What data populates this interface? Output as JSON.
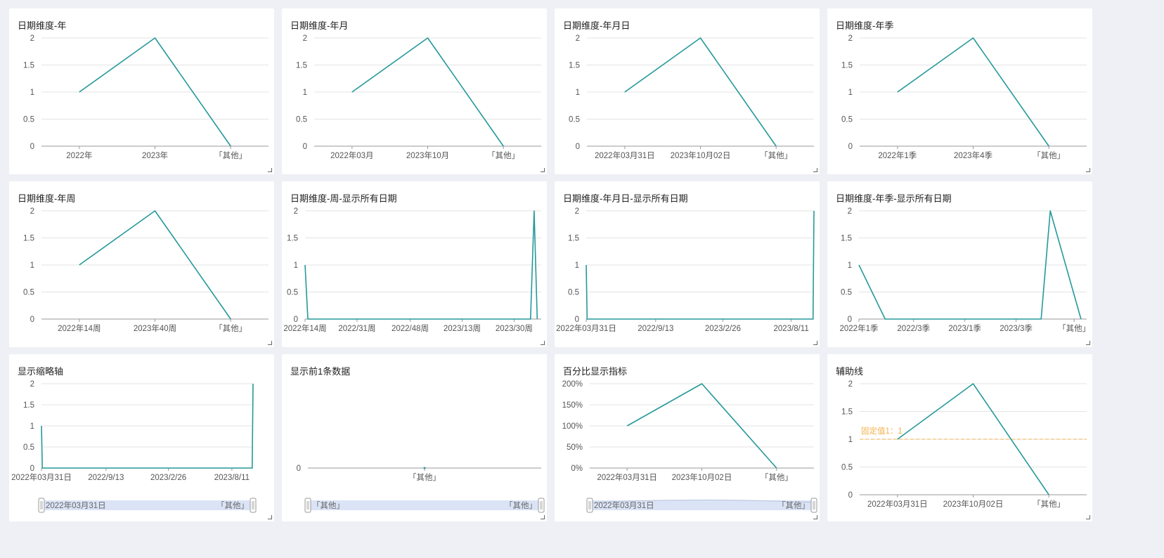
{
  "colors": {
    "line": "#27999a",
    "grid": "#e3e3e3",
    "axis": "#999999",
    "markLine": "#f2b14b",
    "sliderFill": "#dbe4f6"
  },
  "chart_data": [
    {
      "type": "line",
      "title": "日期维度-年",
      "x_ticks": [
        "2022年",
        "2023年",
        "「其他」"
      ],
      "y_ticks": [
        "0",
        "0.5",
        "1",
        "1.5",
        "2"
      ],
      "ylim": [
        0,
        2
      ],
      "series": [
        {
          "values": [
            1,
            2,
            0
          ]
        }
      ]
    },
    {
      "type": "line",
      "title": "日期维度-年月",
      "x_ticks": [
        "2022年03月",
        "2023年10月",
        "「其他」"
      ],
      "y_ticks": [
        "0",
        "0.5",
        "1",
        "1.5",
        "2"
      ],
      "ylim": [
        0,
        2
      ],
      "series": [
        {
          "values": [
            1,
            2,
            0
          ]
        }
      ]
    },
    {
      "type": "line",
      "title": "日期维度-年月日",
      "x_ticks": [
        "2022年03月31日",
        "2023年10月02日",
        "「其他」"
      ],
      "y_ticks": [
        "0",
        "0.5",
        "1",
        "1.5",
        "2"
      ],
      "ylim": [
        0,
        2
      ],
      "series": [
        {
          "values": [
            1,
            2,
            0
          ]
        }
      ]
    },
    {
      "type": "line",
      "title": "日期维度-年季",
      "x_ticks": [
        "2022年1季",
        "2023年4季",
        "「其他」"
      ],
      "y_ticks": [
        "0",
        "0.5",
        "1",
        "1.5",
        "2"
      ],
      "ylim": [
        0,
        2
      ],
      "series": [
        {
          "values": [
            1,
            2,
            0
          ]
        }
      ]
    },
    {
      "type": "line",
      "title": "日期维度-年周",
      "x_ticks": [
        "2022年14周",
        "2023年40周",
        "「其他」"
      ],
      "y_ticks": [
        "0",
        "0.5",
        "1",
        "1.5",
        "2"
      ],
      "ylim": [
        0,
        2
      ],
      "series": [
        {
          "values": [
            1,
            2,
            0
          ]
        }
      ]
    },
    {
      "type": "line",
      "title": "日期维度-周-显示所有日期",
      "x_ticks": [
        "2022年14周",
        "2022/31周",
        "2022/48周",
        "2023/13周",
        "2023/30周"
      ],
      "y_ticks": [
        "0",
        "0.5",
        "1",
        "1.5",
        "2"
      ],
      "ylim": [
        0,
        2
      ],
      "series": [
        {
          "values": [
            1,
            0,
            0,
            0,
            0,
            0,
            0,
            0,
            0,
            0,
            0,
            0,
            0,
            0,
            0,
            0,
            0,
            0,
            0,
            0,
            0,
            0,
            0,
            0,
            0,
            0,
            0,
            0,
            0,
            0,
            0,
            0,
            0,
            0,
            0,
            0,
            0,
            0,
            0,
            0,
            0,
            0,
            0,
            0,
            0,
            0,
            0,
            0,
            0,
            0,
            0,
            0,
            0,
            0,
            0,
            0,
            0,
            0,
            0,
            0,
            0,
            0,
            0,
            0,
            0,
            0,
            0,
            0,
            0,
            0,
            0,
            0,
            0,
            0,
            0,
            0,
            0,
            0,
            0,
            2,
            0
          ]
        }
      ]
    },
    {
      "type": "line",
      "title": "日期维度-年月日-显示所有日期",
      "x_ticks": [
        "2022年03月31日",
        "2022/9/13",
        "2023/2/26",
        "2023/8/11"
      ],
      "y_ticks": [
        "0",
        "0.5",
        "1",
        "1.5",
        "2"
      ],
      "ylim": [
        0,
        2
      ],
      "series": [
        {
          "values": [
            1,
            0,
            0,
            2
          ]
        }
      ]
    },
    {
      "type": "line",
      "title": "日期维度-年季-显示所有日期",
      "x_ticks": [
        "2022年1季",
        "2022/3季",
        "2023/1季",
        "2023/3季",
        "「其他」"
      ],
      "y_ticks": [
        "0",
        "0.5",
        "1",
        "1.5",
        "2"
      ],
      "ylim": [
        0,
        2
      ],
      "series": [
        {
          "values": [
            1,
            0,
            0,
            0,
            0,
            0,
            2,
            0
          ]
        }
      ]
    },
    {
      "type": "line",
      "title": "显示缩略轴",
      "x_ticks": [
        "2022年03月31日",
        "2022/9/13",
        "2023/2/26",
        "2023/8/11"
      ],
      "y_ticks": [
        "0",
        "0.5",
        "1",
        "1.5",
        "2"
      ],
      "ylim": [
        0,
        2
      ],
      "series": [
        {
          "values": [
            1,
            0,
            0,
            2
          ]
        }
      ],
      "slider": {
        "start_label": "2022年03月31日",
        "end_label": "「其他」"
      }
    },
    {
      "type": "line",
      "title": "显示前1条数据",
      "x_ticks": [
        "「其他」"
      ],
      "y_ticks": [
        "0"
      ],
      "ylim": [
        0,
        1
      ],
      "series": [
        {
          "values": [
            0
          ]
        }
      ],
      "slider": {
        "start_label": "「其他」",
        "end_label": "「其他」"
      }
    },
    {
      "type": "line",
      "title": "百分比显示指标",
      "x_ticks": [
        "2022年03月31日",
        "2023年10月02日",
        "「其他」"
      ],
      "y_ticks": [
        "0%",
        "50%",
        "100%",
        "150%",
        "200%"
      ],
      "ylim": [
        0,
        2
      ],
      "series": [
        {
          "values": [
            1,
            2,
            0
          ]
        }
      ],
      "slider": {
        "start_label": "2022年03月31日",
        "end_label": "「其他」"
      }
    },
    {
      "type": "line",
      "title": "辅助线",
      "x_ticks": [
        "2022年03月31日",
        "2023年10月02日",
        "「其他」"
      ],
      "y_ticks": [
        "0",
        "0.5",
        "1",
        "1.5",
        "2"
      ],
      "ylim": [
        0,
        2
      ],
      "series": [
        {
          "values": [
            1,
            2,
            0
          ]
        }
      ],
      "reference_line": {
        "label": "固定值1：1",
        "value": 1
      }
    }
  ]
}
